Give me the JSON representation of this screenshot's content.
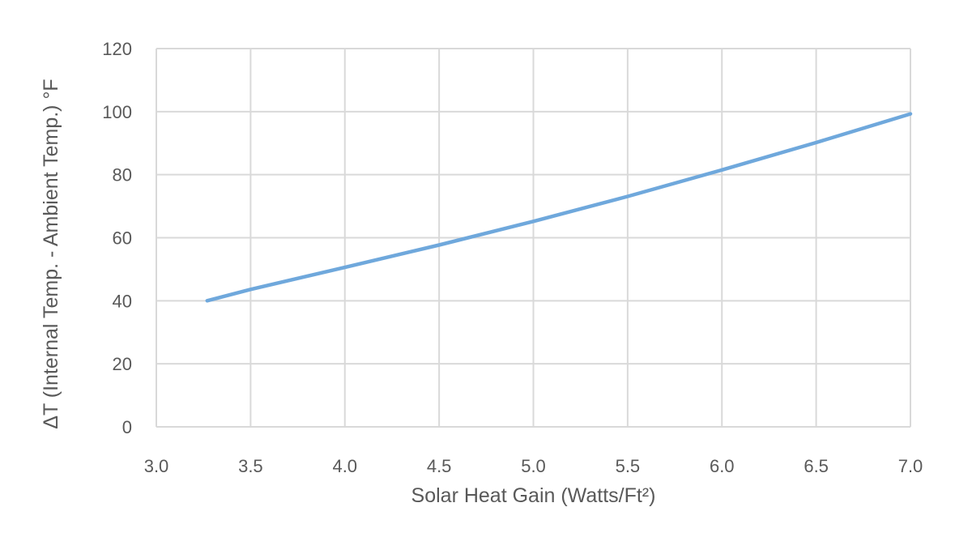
{
  "chart_data": {
    "type": "line",
    "title": "",
    "xlabel": "Solar Heat Gain (Watts/Ft²)",
    "ylabel": "ΔT (Internal Temp. - Ambient Temp.) °F",
    "xlim": [
      3.0,
      7.0
    ],
    "ylim": [
      0,
      120
    ],
    "x_ticks": [
      "3.0",
      "3.5",
      "4.0",
      "4.5",
      "5.0",
      "5.5",
      "6.0",
      "6.5",
      "7.0"
    ],
    "y_ticks": [
      "0",
      "20",
      "40",
      "60",
      "80",
      "100",
      "120"
    ],
    "grid": true,
    "series": [
      {
        "color": "#6fa8dc",
        "x": [
          3.27,
          3.5,
          4.0,
          4.5,
          5.0,
          5.5,
          6.0,
          6.5,
          7.0
        ],
        "y": [
          40,
          43.6,
          50.6,
          57.7,
          65.2,
          73.1,
          81.5,
          90.2,
          99.3
        ]
      }
    ]
  }
}
